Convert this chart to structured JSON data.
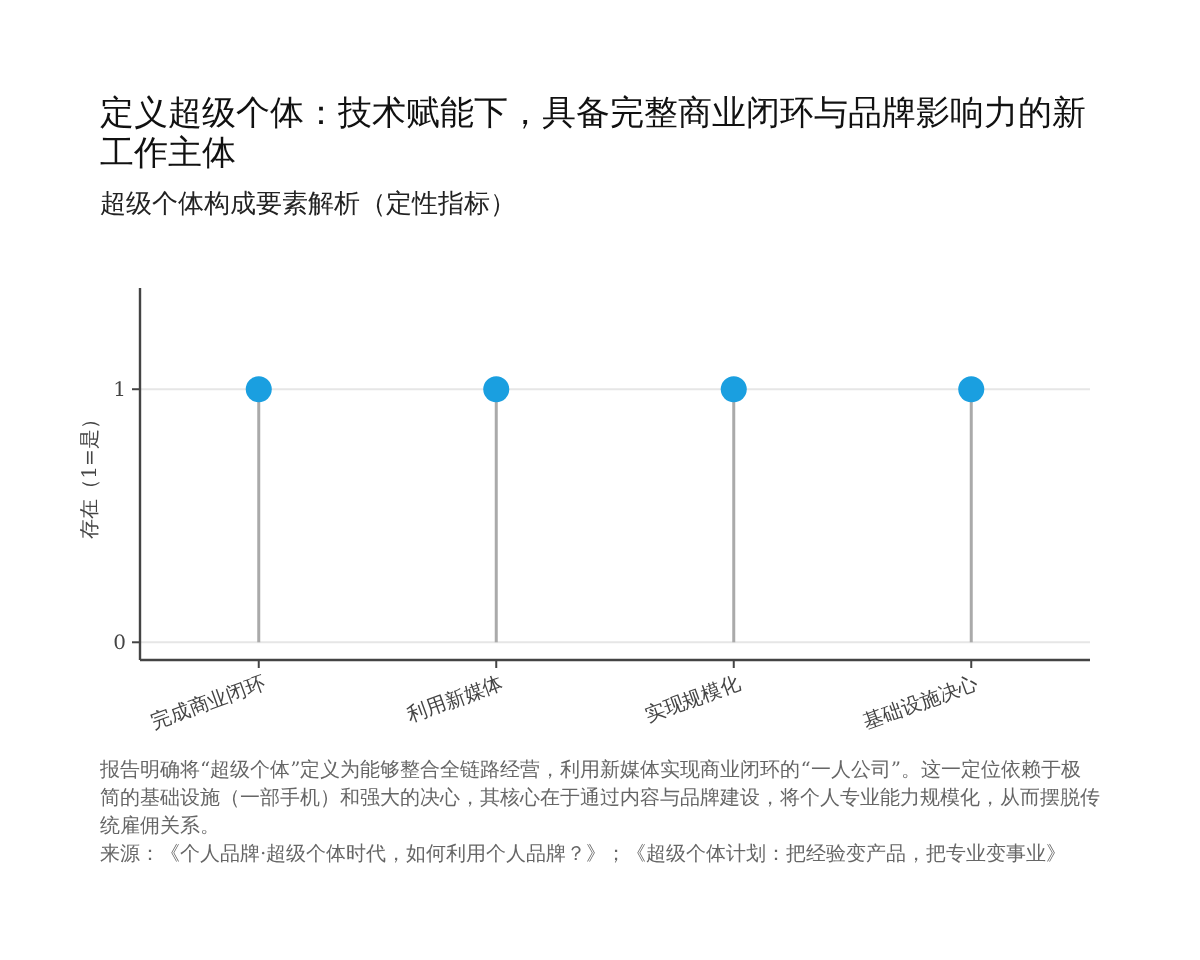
{
  "chart_data": {
    "type": "lollipop",
    "title": "定义超级个体：技术赋能下，具备完整商业闭环与品牌影响力的新工作主体",
    "subtitle": "超级个体构成要素解析（定性指标）",
    "ylabel": "存在（1=是）",
    "categories": [
      "完成商业闭环",
      "利用新媒体",
      "实现规模化",
      "基础设施决心"
    ],
    "values": [
      1,
      1,
      1,
      1
    ],
    "color": "#1a9fe0",
    "ylim": [
      -0.07,
      1.4
    ],
    "yticks": [
      0,
      1
    ],
    "grid": "y",
    "marker": "circle",
    "annotations": [
      "报告明确将“超级个体”定义为能够整合全链路经营，利用新媒体实现商业闭环的“一人公司”。这一定位依赖于极简的基础设施（一部手机）和强大的决心，其核心在于通过内容与品牌建设，将个人专业能力规模化，从而摆脱传统雇佣关系。",
      "来源：《个人品牌·超级个体时代，如何利用个人品牌？》；《超级个体计划：把经验变产品，把专业变事业》"
    ]
  }
}
